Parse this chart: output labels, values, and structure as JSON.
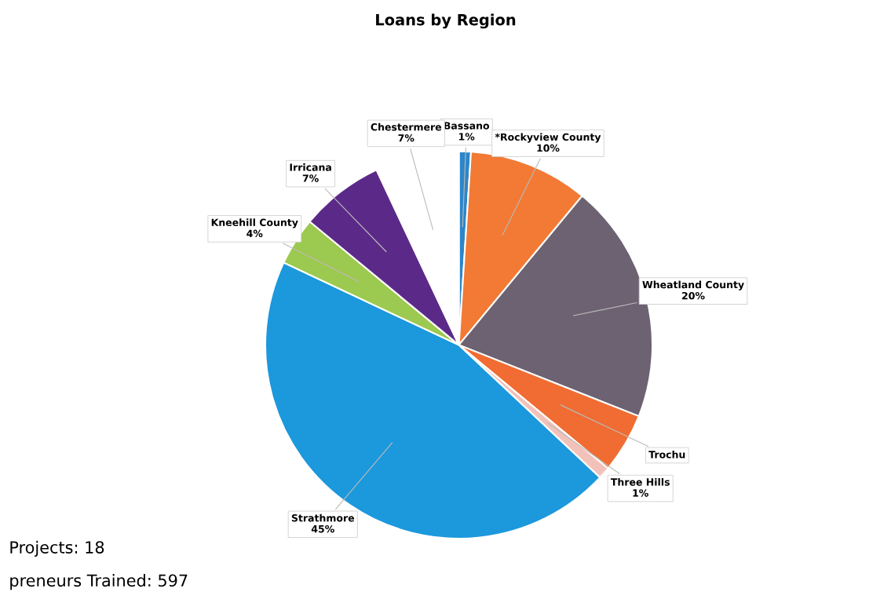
{
  "chart_data": {
    "type": "pie",
    "title": "Loans by Region",
    "categories": [
      "Bassano",
      "*Rockyview County",
      "Wheatland County",
      "Trochu",
      "Three Hills",
      "Strathmore",
      "Kneehill County",
      "Irricana",
      "Chestermere"
    ],
    "values": [
      1,
      10,
      20,
      5,
      1,
      45,
      4,
      7,
      7
    ],
    "value_labels": [
      "1%",
      "10%",
      "20%",
      null,
      "1%",
      "45%",
      "4%",
      "7%",
      "7%"
    ],
    "colors": [
      "#2e86c8",
      "#f27a35",
      "#6c6272",
      "#f06c32",
      "#f2c2ba",
      "#1c98dc",
      "#9cc950",
      "#5b2a88",
      "#ffffff"
    ],
    "annotations": [
      "Projects: 18",
      "preneurs Trained: 597"
    ]
  }
}
